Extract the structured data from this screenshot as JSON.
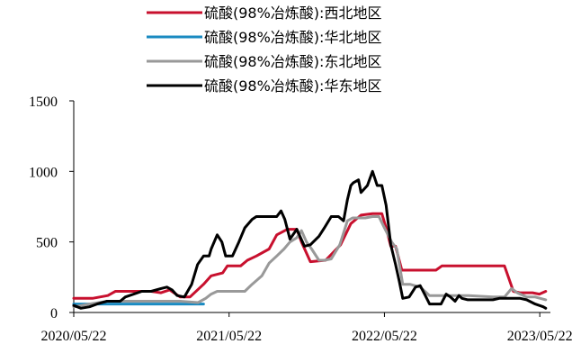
{
  "chart_data": {
    "type": "line",
    "title": "",
    "xlabel": "",
    "ylabel": "",
    "x_start": "2020/05/22",
    "x_end": "2023/06/16",
    "x_ticks": [
      "2020/05/22",
      "2021/05/22",
      "2022/05/22",
      "2023/05/22"
    ],
    "ylim": [
      0,
      1500
    ],
    "y_ticks": [
      0,
      500,
      1000,
      1500
    ],
    "grid": false,
    "legend_position": "top-center",
    "series": [
      {
        "name": "硫酸(98%冶炼酸):西北地区",
        "color": "#C8102E",
        "points": [
          [
            "2020/05/22",
            100
          ],
          [
            "2020/07/05",
            100
          ],
          [
            "2020/08/10",
            120
          ],
          [
            "2020/08/28",
            150
          ],
          [
            "2020/10/29",
            150
          ],
          [
            "2020/11/20",
            150
          ],
          [
            "2020/12/13",
            140
          ],
          [
            "2021/01/02",
            160
          ],
          [
            "2021/01/27",
            110
          ],
          [
            "2021/02/19",
            110
          ],
          [
            "2021/03/23",
            200
          ],
          [
            "2021/04/10",
            260
          ],
          [
            "2021/05/07",
            280
          ],
          [
            "2021/05/18",
            330
          ],
          [
            "2021/06/18",
            330
          ],
          [
            "2021/07/04",
            370
          ],
          [
            "2021/07/25",
            400
          ],
          [
            "2021/08/24",
            450
          ],
          [
            "2021/09/11",
            550
          ],
          [
            "2021/10/06",
            590
          ],
          [
            "2021/10/28",
            590
          ],
          [
            "2021/11/08",
            500
          ],
          [
            "2021/11/29",
            360
          ],
          [
            "2022/01/04",
            370
          ],
          [
            "2022/02/08",
            480
          ],
          [
            "2022/03/04",
            630
          ],
          [
            "2022/03/28",
            690
          ],
          [
            "2022/04/24",
            700
          ],
          [
            "2022/05/16",
            700
          ],
          [
            "2022/05/26",
            600
          ],
          [
            "2022/06/06",
            470
          ],
          [
            "2022/06/17",
            470
          ],
          [
            "2022/07/02",
            300
          ],
          [
            "2022/08/03",
            300
          ],
          [
            "2022/09/20",
            300
          ],
          [
            "2022/10/04",
            330
          ],
          [
            "2022/12/25",
            330
          ],
          [
            "2023/02/08",
            330
          ],
          [
            "2023/02/28",
            330
          ],
          [
            "2023/03/21",
            150
          ],
          [
            "2023/04/05",
            140
          ],
          [
            "2023/05/05",
            140
          ],
          [
            "2023/05/21",
            130
          ],
          [
            "2023/06/05",
            150
          ]
        ]
      },
      {
        "name": "硫酸(98%冶炼酸):华北地区",
        "color": "#1A8AC1",
        "points": [
          [
            "2020/05/22",
            60
          ],
          [
            "2020/07/10",
            60
          ],
          [
            "2020/09/08",
            60
          ],
          [
            "2020/12/07",
            60
          ],
          [
            "2021/03/23",
            60
          ]
        ]
      },
      {
        "name": "硫酸(98%冶炼酸):东北地区",
        "color": "#999999",
        "points": [
          [
            "2020/05/22",
            40
          ],
          [
            "2020/06/28",
            60
          ],
          [
            "2020/08/10",
            80
          ],
          [
            "2020/09/20",
            80
          ],
          [
            "2020/11/20",
            80
          ],
          [
            "2021/01/27",
            80
          ],
          [
            "2021/03/10",
            70
          ],
          [
            "2021/03/28",
            100
          ],
          [
            "2021/04/10",
            130
          ],
          [
            "2021/04/24",
            150
          ],
          [
            "2021/05/29",
            150
          ],
          [
            "2021/06/28",
            150
          ],
          [
            "2021/07/15",
            200
          ],
          [
            "2021/08/07",
            260
          ],
          [
            "2021/08/24",
            350
          ],
          [
            "2021/09/11",
            400
          ],
          [
            "2021/09/28",
            450
          ],
          [
            "2021/10/12",
            500
          ],
          [
            "2021/10/28",
            530
          ],
          [
            "2021/11/08",
            580
          ],
          [
            "2021/11/20",
            500
          ],
          [
            "2021/12/02",
            450
          ],
          [
            "2021/12/19",
            370
          ],
          [
            "2022/01/01",
            370
          ],
          [
            "2022/01/17",
            380
          ],
          [
            "2022/02/06",
            480
          ],
          [
            "2022/02/24",
            650
          ],
          [
            "2022/03/08",
            670
          ],
          [
            "2022/04/07",
            670
          ],
          [
            "2022/04/24",
            680
          ],
          [
            "2022/05/09",
            680
          ],
          [
            "2022/05/22",
            600
          ],
          [
            "2022/06/08",
            500
          ],
          [
            "2022/06/20",
            450
          ],
          [
            "2022/07/04",
            200
          ],
          [
            "2022/07/21",
            200
          ],
          [
            "2022/08/14",
            180
          ],
          [
            "2022/09/05",
            120
          ],
          [
            "2022/10/14",
            120
          ],
          [
            "2022/12/06",
            120
          ],
          [
            "2023/02/01",
            110
          ],
          [
            "2023/02/28",
            110
          ],
          [
            "2023/03/17",
            170
          ],
          [
            "2023/03/30",
            140
          ],
          [
            "2023/04/21",
            110
          ],
          [
            "2023/05/11",
            110
          ],
          [
            "2023/06/05",
            90
          ]
        ]
      },
      {
        "name": "硫酸(98%冶炼酸):华东地区",
        "color": "#000000",
        "points": [
          [
            "2020/05/22",
            50
          ],
          [
            "2020/06/08",
            30
          ],
          [
            "2020/06/28",
            40
          ],
          [
            "2020/07/16",
            60
          ],
          [
            "2020/08/08",
            80
          ],
          [
            "2020/09/08",
            80
          ],
          [
            "2020/09/20",
            110
          ],
          [
            "2020/10/29",
            150
          ],
          [
            "2020/11/20",
            150
          ],
          [
            "2020/12/13",
            170
          ],
          [
            "2020/12/27",
            180
          ],
          [
            "2021/01/08",
            160
          ],
          [
            "2021/01/20",
            120
          ],
          [
            "2021/02/06",
            110
          ],
          [
            "2021/02/23",
            200
          ],
          [
            "2021/03/09",
            340
          ],
          [
            "2021/03/23",
            400
          ],
          [
            "2021/04/05",
            400
          ],
          [
            "2021/04/10",
            450
          ],
          [
            "2021/04/24",
            550
          ],
          [
            "2021/05/05",
            500
          ],
          [
            "2021/05/14",
            400
          ],
          [
            "2021/05/30",
            400
          ],
          [
            "2021/06/14",
            500
          ],
          [
            "2021/06/28",
            600
          ],
          [
            "2021/07/15",
            660
          ],
          [
            "2021/07/25",
            680
          ],
          [
            "2021/09/11",
            680
          ],
          [
            "2021/09/21",
            720
          ],
          [
            "2021/09/30",
            660
          ],
          [
            "2021/10/12",
            520
          ],
          [
            "2021/10/28",
            590
          ],
          [
            "2021/11/15",
            470
          ],
          [
            "2021/11/29",
            480
          ],
          [
            "2021/12/19",
            540
          ],
          [
            "2022/01/01",
            600
          ],
          [
            "2022/01/17",
            680
          ],
          [
            "2022/02/03",
            680
          ],
          [
            "2022/02/15",
            650
          ],
          [
            "2022/02/24",
            800
          ],
          [
            "2022/03/04",
            900
          ],
          [
            "2022/03/10",
            920
          ],
          [
            "2022/03/22",
            940
          ],
          [
            "2022/03/28",
            850
          ],
          [
            "2022/04/12",
            900
          ],
          [
            "2022/04/24",
            1000
          ],
          [
            "2022/05/05",
            900
          ],
          [
            "2022/05/16",
            900
          ],
          [
            "2022/05/26",
            760
          ],
          [
            "2022/06/06",
            480
          ],
          [
            "2022/06/17",
            340
          ],
          [
            "2022/06/26",
            220
          ],
          [
            "2022/07/04",
            100
          ],
          [
            "2022/07/19",
            110
          ],
          [
            "2022/08/03",
            180
          ],
          [
            "2022/08/14",
            190
          ],
          [
            "2022/08/26",
            120
          ],
          [
            "2022/09/05",
            60
          ],
          [
            "2022/10/02",
            60
          ],
          [
            "2022/10/14",
            130
          ],
          [
            "2022/10/24",
            110
          ],
          [
            "2022/11/04",
            80
          ],
          [
            "2022/11/13",
            120
          ],
          [
            "2022/11/20",
            100
          ],
          [
            "2022/12/04",
            90
          ],
          [
            "2023/01/03",
            90
          ],
          [
            "2023/02/01",
            90
          ],
          [
            "2023/02/16",
            100
          ],
          [
            "2023/03/21",
            100
          ],
          [
            "2023/04/06",
            100
          ],
          [
            "2023/04/21",
            90
          ],
          [
            "2023/05/11",
            60
          ],
          [
            "2023/05/30",
            40
          ],
          [
            "2023/06/05",
            30
          ]
        ]
      }
    ]
  }
}
